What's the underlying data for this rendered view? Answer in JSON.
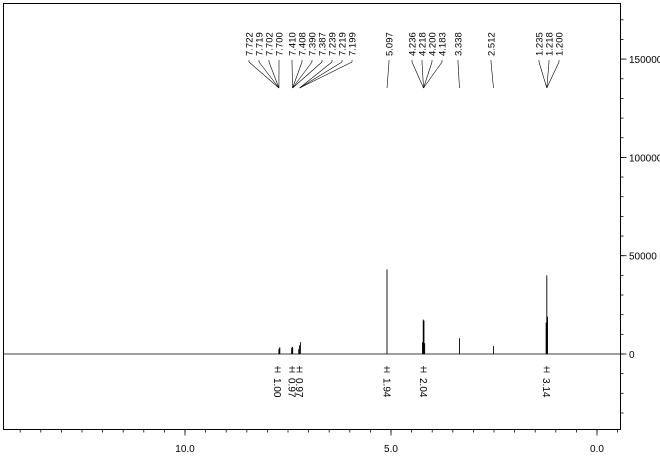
{
  "chart_data": {
    "type": "line",
    "title": "",
    "xlabel": "",
    "ylabel": "",
    "xlim": [
      14.5,
      -0.6
    ],
    "ylim": [
      -38000,
      178000
    ],
    "x_ticks": [
      {
        "value": 10,
        "label": "10.0"
      },
      {
        "value": 5,
        "label": "5.0"
      },
      {
        "value": 0,
        "label": "0.0"
      }
    ],
    "x_minor_step": 0.5,
    "y_ticks": [
      {
        "value": 150000,
        "label": "150000"
      },
      {
        "value": 100000,
        "label": "100000"
      },
      {
        "value": 50000,
        "label": "50000"
      },
      {
        "value": 0,
        "label": "0"
      }
    ],
    "y_minor_step": 10000,
    "baseline": 0,
    "peaks": [
      {
        "x": 7.722,
        "height": 2000
      },
      {
        "x": 7.719,
        "height": 2600
      },
      {
        "x": 7.702,
        "height": 3000
      },
      {
        "x": 7.7,
        "height": 3400
      },
      {
        "x": 7.41,
        "height": 2800
      },
      {
        "x": 7.408,
        "height": 3200
      },
      {
        "x": 7.39,
        "height": 3600
      },
      {
        "x": 7.387,
        "height": 2900
      },
      {
        "x": 7.239,
        "height": 2500
      },
      {
        "x": 7.219,
        "height": 4400
      },
      {
        "x": 7.199,
        "height": 6000
      },
      {
        "x": 5.097,
        "height": 43000
      },
      {
        "x": 4.236,
        "height": 6000
      },
      {
        "x": 4.218,
        "height": 17500
      },
      {
        "x": 4.2,
        "height": 17000
      },
      {
        "x": 4.183,
        "height": 5500
      },
      {
        "x": 3.338,
        "height": 8000
      },
      {
        "x": 2.512,
        "height": 4000
      },
      {
        "x": 1.235,
        "height": 16000
      },
      {
        "x": 1.218,
        "height": 40000
      },
      {
        "x": 1.2,
        "height": 19000
      }
    ],
    "peak_labels": {
      "values": [
        "7.722",
        "7.719",
        "7.702",
        "7.700",
        "7.410",
        "7.408",
        "7.390",
        "7.387",
        "7.239",
        "7.219",
        "7.199",
        "5.097",
        "4.236",
        "4.218",
        "4.200",
        "4.183",
        "3.338",
        "2.512",
        "1.235",
        "1.218",
        "1.200"
      ],
      "groups": [
        {
          "members": [
            0,
            1,
            2,
            3,
            4,
            5,
            6,
            7,
            8,
            9,
            10
          ],
          "apex_x": [
            7.72,
            7.39,
            7.219
          ]
        },
        {
          "members": [
            11
          ],
          "apex_x": [
            5.097
          ]
        },
        {
          "members": [
            12,
            13,
            14,
            15
          ],
          "apex_x": [
            4.21
          ]
        },
        {
          "members": [
            16
          ],
          "apex_x": [
            3.338
          ]
        },
        {
          "members": [
            17
          ],
          "apex_x": [
            2.512
          ]
        },
        {
          "members": [
            18,
            19,
            20
          ],
          "apex_x": [
            1.218
          ]
        }
      ]
    },
    "integrals": [
      {
        "x": 7.75,
        "value": "1.00"
      },
      {
        "x": 7.4,
        "value": "0.97"
      },
      {
        "x": 7.22,
        "value": "0.97"
      },
      {
        "x": 5.1,
        "value": "1.94"
      },
      {
        "x": 4.21,
        "value": "2.04"
      },
      {
        "x": 1.22,
        "value": "3.14"
      }
    ],
    "grid": false,
    "legend": "none"
  }
}
